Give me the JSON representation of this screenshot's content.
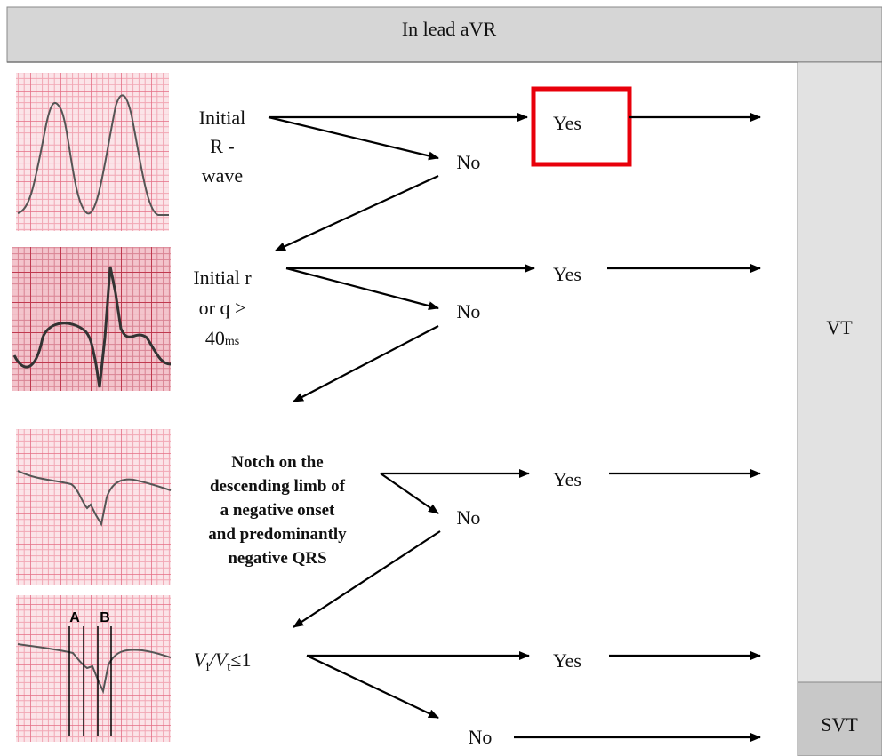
{
  "header": {
    "title": "In lead aVR"
  },
  "outcomes": {
    "vt": "VT",
    "svt": "SVT"
  },
  "steps": [
    {
      "lines": [
        "Initial",
        "R -",
        "wave"
      ],
      "yes": "Yes",
      "no": "No"
    },
    {
      "lines": [
        "Initial r",
        "or q >"
      ],
      "duration": {
        "number": "40",
        "unit": "ms"
      },
      "yes": "Yes",
      "no": "No"
    },
    {
      "lines": [
        "Notch on the",
        "descending limb of",
        "a negative onset",
        "and predominantly",
        "negative QRS"
      ],
      "yes": "Yes",
      "no": "No"
    },
    {
      "formula": [
        "V",
        "i",
        "/",
        "V",
        "t",
        "≤1"
      ],
      "yes": "Yes",
      "no": "No"
    }
  ],
  "ecg_markers": [
    "A",
    "B"
  ]
}
